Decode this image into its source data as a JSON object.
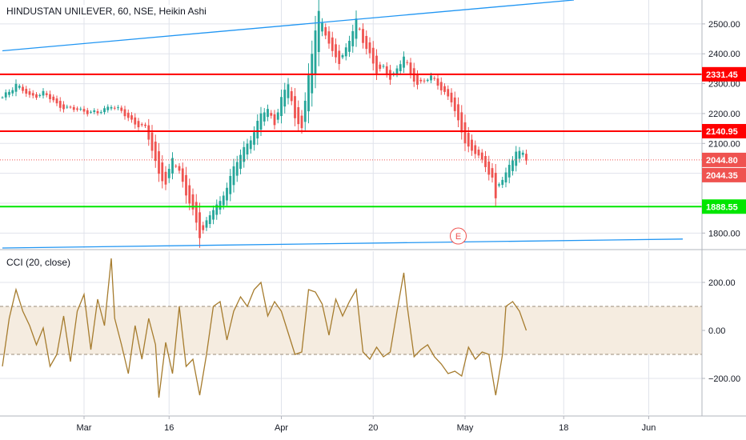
{
  "header": {
    "title": "HINDUSTAN UNILEVER, 60, NSE, Heikin Ashi",
    "indicator_label": "CCI (20, close)"
  },
  "colors": {
    "up": "#26a69a",
    "down": "#ef5350",
    "trendline": "#2196f3",
    "resistance": "#ff0000",
    "support": "#00e600",
    "cci_line": "#a67c2e",
    "cci_band": "#f5ece0",
    "price_badge": "#ef5350",
    "grid": "#e0e3eb",
    "text": "#131722"
  },
  "chart_data": [
    {
      "type": "candlestick",
      "title": "HINDUSTAN UNILEVER, 60, NSE, Heikin Ashi",
      "yticks": [
        1800,
        1900,
        2000,
        2100,
        2200,
        2300,
        2400,
        2500
      ],
      "ytick_labels": [
        "1800.00",
        "1900.00",
        "2000.00",
        "2100.00",
        "2200.00",
        "2300.00",
        "2400.00",
        "2500.00"
      ],
      "xtick_labels": [
        "Mar",
        "16",
        "Apr",
        "20",
        "May",
        "18",
        "Jun"
      ],
      "xtick_index": [
        24,
        49,
        82,
        109,
        136,
        165,
        190
      ],
      "ylim": [
        1750,
        2580
      ],
      "price_path": [
        [
          0,
          2250
        ],
        [
          4,
          2300
        ],
        [
          8,
          2255
        ],
        [
          12,
          2270
        ],
        [
          16,
          2230
        ],
        [
          20,
          2215
        ],
        [
          24,
          2210
        ],
        [
          28,
          2200
        ],
        [
          32,
          2230
        ],
        [
          36,
          2195
        ],
        [
          40,
          2160
        ],
        [
          42,
          2150
        ],
        [
          44,
          2080
        ],
        [
          46,
          2000
        ],
        [
          48,
          1960
        ],
        [
          50,
          2050
        ],
        [
          52,
          2010
        ],
        [
          54,
          1930
        ],
        [
          56,
          1870
        ],
        [
          58,
          1790
        ],
        [
          60,
          1840
        ],
        [
          62,
          1880
        ],
        [
          64,
          1900
        ],
        [
          66,
          1960
        ],
        [
          68,
          2020
        ],
        [
          70,
          2060
        ],
        [
          72,
          2100
        ],
        [
          74,
          2140
        ],
        [
          76,
          2200
        ],
        [
          78,
          2210
        ],
        [
          80,
          2170
        ],
        [
          82,
          2250
        ],
        [
          84,
          2300
        ],
        [
          86,
          2180
        ],
        [
          88,
          2160
        ],
        [
          90,
          2320
        ],
        [
          92,
          2480
        ],
        [
          93,
          2540
        ],
        [
          95,
          2470
        ],
        [
          97,
          2400
        ],
        [
          99,
          2370
        ],
        [
          101,
          2420
        ],
        [
          103,
          2480
        ],
        [
          104,
          2510
        ],
        [
          106,
          2440
        ],
        [
          108,
          2400
        ],
        [
          110,
          2340
        ],
        [
          112,
          2350
        ],
        [
          114,
          2320
        ],
        [
          116,
          2350
        ],
        [
          118,
          2390
        ],
        [
          120,
          2330
        ],
        [
          122,
          2300
        ],
        [
          124,
          2310
        ],
        [
          126,
          2320
        ],
        [
          128,
          2300
        ],
        [
          130,
          2270
        ],
        [
          132,
          2240
        ],
        [
          134,
          2170
        ],
        [
          136,
          2110
        ],
        [
          138,
          2070
        ],
        [
          140,
          2060
        ],
        [
          142,
          2020
        ],
        [
          144,
          1990
        ],
        [
          145,
          1910
        ],
        [
          146,
          1960
        ],
        [
          148,
          2000
        ],
        [
          150,
          2050
        ],
        [
          151,
          2080
        ],
        [
          152,
          2070
        ],
        [
          153,
          2062
        ],
        [
          154,
          2044
        ]
      ],
      "horizontal_levels": [
        {
          "value": 2331.45,
          "label": "2331.45",
          "color": "#ff0000"
        },
        {
          "value": 2140.95,
          "label": "2140.95",
          "color": "#ff0000"
        },
        {
          "value": 1888.55,
          "label": "1888.55",
          "color": "#00e600"
        }
      ],
      "trendlines": [
        {
          "from": [
            0,
            2410
          ],
          "to": [
            168,
            2580
          ]
        },
        {
          "from": [
            0,
            1750
          ],
          "to": [
            200,
            1780
          ]
        }
      ],
      "last_price": {
        "value": 2044.8,
        "label": "2044.80"
      },
      "secondary_price": {
        "value": 2044.35,
        "label": "2044.35"
      },
      "earnings_marker": {
        "index": 134,
        "label": "E"
      }
    },
    {
      "type": "line",
      "title": "CCI (20, close)",
      "yticks": [
        -200,
        0,
        200
      ],
      "ytick_labels": [
        "−200.00",
        "0.00",
        "200.00"
      ],
      "ylim": [
        -350,
        330
      ],
      "band": [
        -100,
        100
      ],
      "points": [
        [
          0,
          -150
        ],
        [
          2,
          50
        ],
        [
          4,
          170
        ],
        [
          6,
          80
        ],
        [
          8,
          20
        ],
        [
          10,
          -60
        ],
        [
          12,
          10
        ],
        [
          14,
          -150
        ],
        [
          16,
          -100
        ],
        [
          18,
          60
        ],
        [
          20,
          -130
        ],
        [
          22,
          80
        ],
        [
          24,
          150
        ],
        [
          26,
          -80
        ],
        [
          28,
          130
        ],
        [
          30,
          20
        ],
        [
          32,
          300
        ],
        [
          33,
          50
        ],
        [
          35,
          -60
        ],
        [
          37,
          -180
        ],
        [
          39,
          20
        ],
        [
          41,
          -120
        ],
        [
          43,
          50
        ],
        [
          45,
          -60
        ],
        [
          46,
          -280
        ],
        [
          48,
          -50
        ],
        [
          50,
          -180
        ],
        [
          52,
          100
        ],
        [
          54,
          -150
        ],
        [
          56,
          -120
        ],
        [
          58,
          -270
        ],
        [
          60,
          -100
        ],
        [
          62,
          100
        ],
        [
          64,
          120
        ],
        [
          66,
          -40
        ],
        [
          68,
          80
        ],
        [
          70,
          140
        ],
        [
          72,
          100
        ],
        [
          74,
          170
        ],
        [
          76,
          200
        ],
        [
          78,
          60
        ],
        [
          80,
          120
        ],
        [
          82,
          80
        ],
        [
          84,
          -10
        ],
        [
          86,
          -100
        ],
        [
          88,
          -90
        ],
        [
          90,
          170
        ],
        [
          92,
          160
        ],
        [
          94,
          110
        ],
        [
          96,
          -20
        ],
        [
          98,
          130
        ],
        [
          100,
          60
        ],
        [
          102,
          120
        ],
        [
          104,
          170
        ],
        [
          106,
          -90
        ],
        [
          108,
          -120
        ],
        [
          110,
          -70
        ],
        [
          112,
          -110
        ],
        [
          114,
          -90
        ],
        [
          116,
          80
        ],
        [
          118,
          240
        ],
        [
          119,
          100
        ],
        [
          121,
          -110
        ],
        [
          123,
          -80
        ],
        [
          125,
          -60
        ],
        [
          127,
          -110
        ],
        [
          129,
          -140
        ],
        [
          131,
          -180
        ],
        [
          133,
          -170
        ],
        [
          135,
          -190
        ],
        [
          137,
          -70
        ],
        [
          139,
          -120
        ],
        [
          141,
          -90
        ],
        [
          143,
          -100
        ],
        [
          145,
          -270
        ],
        [
          147,
          -100
        ],
        [
          148,
          100
        ],
        [
          150,
          120
        ],
        [
          152,
          80
        ],
        [
          154,
          0
        ]
      ]
    }
  ]
}
